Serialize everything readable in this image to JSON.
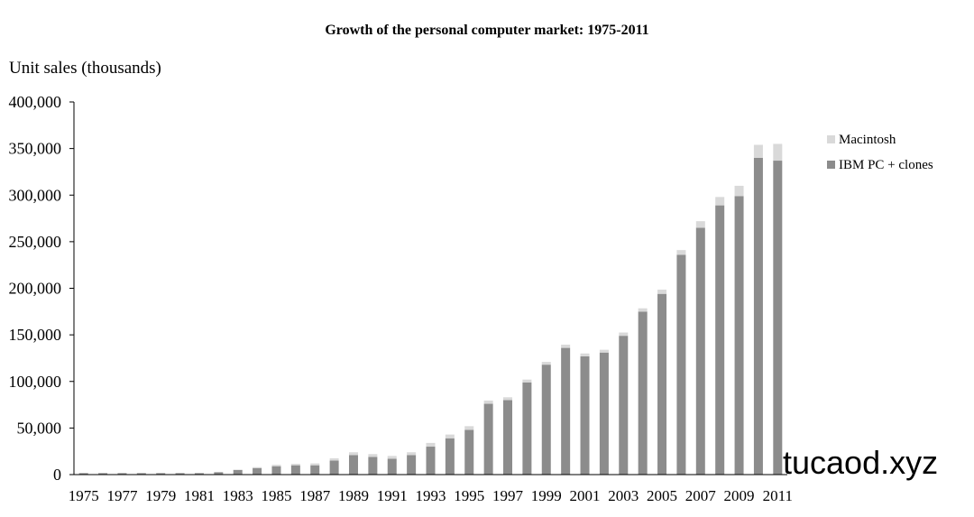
{
  "watermark": "tucaod.xyz",
  "chart_data": {
    "type": "bar",
    "stacked": true,
    "title": "Growth of the personal computer market: 1975-2011",
    "ylabel": "Unit sales (thousands)",
    "xlabel": "",
    "ylim": [
      0,
      400000
    ],
    "y_ticks": [
      0,
      50000,
      100000,
      150000,
      200000,
      250000,
      300000,
      350000,
      400000
    ],
    "y_tick_labels": [
      "0",
      "50,000",
      "100,000",
      "150,000",
      "200,000",
      "250,000",
      "300,000",
      "350,000",
      "400,000"
    ],
    "categories": [
      "1975",
      "1976",
      "1977",
      "1978",
      "1979",
      "1980",
      "1981",
      "1982",
      "1983",
      "1984",
      "1985",
      "1986",
      "1987",
      "1988",
      "1989",
      "1990",
      "1991",
      "1992",
      "1993",
      "1994",
      "1995",
      "1996",
      "1997",
      "1998",
      "1999",
      "2000",
      "2001",
      "2002",
      "2003",
      "2004",
      "2005",
      "2006",
      "2007",
      "2008",
      "2009",
      "2010",
      "2011"
    ],
    "x_tick_labels": [
      "1975",
      "1977",
      "1979",
      "1981",
      "1983",
      "1985",
      "1987",
      "1989",
      "1991",
      "1993",
      "1995",
      "1997",
      "1999",
      "2001",
      "2003",
      "2005",
      "2007",
      "2009",
      "2011"
    ],
    "legend_position": "right",
    "grid": false,
    "series": [
      {
        "name": "IBM PC + clones",
        "color": "#8c8c8c",
        "values": [
          1500,
          1500,
          1500,
          1500,
          1500,
          1500,
          1500,
          2500,
          5000,
          7000,
          9000,
          10000,
          10000,
          15000,
          21000,
          19000,
          17000,
          21000,
          30000,
          39000,
          48000,
          76000,
          80000,
          99000,
          118000,
          136000,
          127000,
          131000,
          149000,
          175000,
          194000,
          236000,
          265000,
          289000,
          299000,
          340000,
          337000
        ]
      },
      {
        "name": "Macintosh",
        "color": "#d9d9d9",
        "values": [
          300,
          300,
          300,
          300,
          300,
          300,
          300,
          300,
          300,
          1000,
          1500,
          1500,
          2000,
          2500,
          3000,
          3000,
          3000,
          3000,
          4000,
          4000,
          4000,
          3500,
          3000,
          3000,
          3000,
          3500,
          3000,
          3000,
          3500,
          3500,
          4500,
          5000,
          7000,
          9000,
          11000,
          14000,
          18000
        ]
      }
    ]
  }
}
